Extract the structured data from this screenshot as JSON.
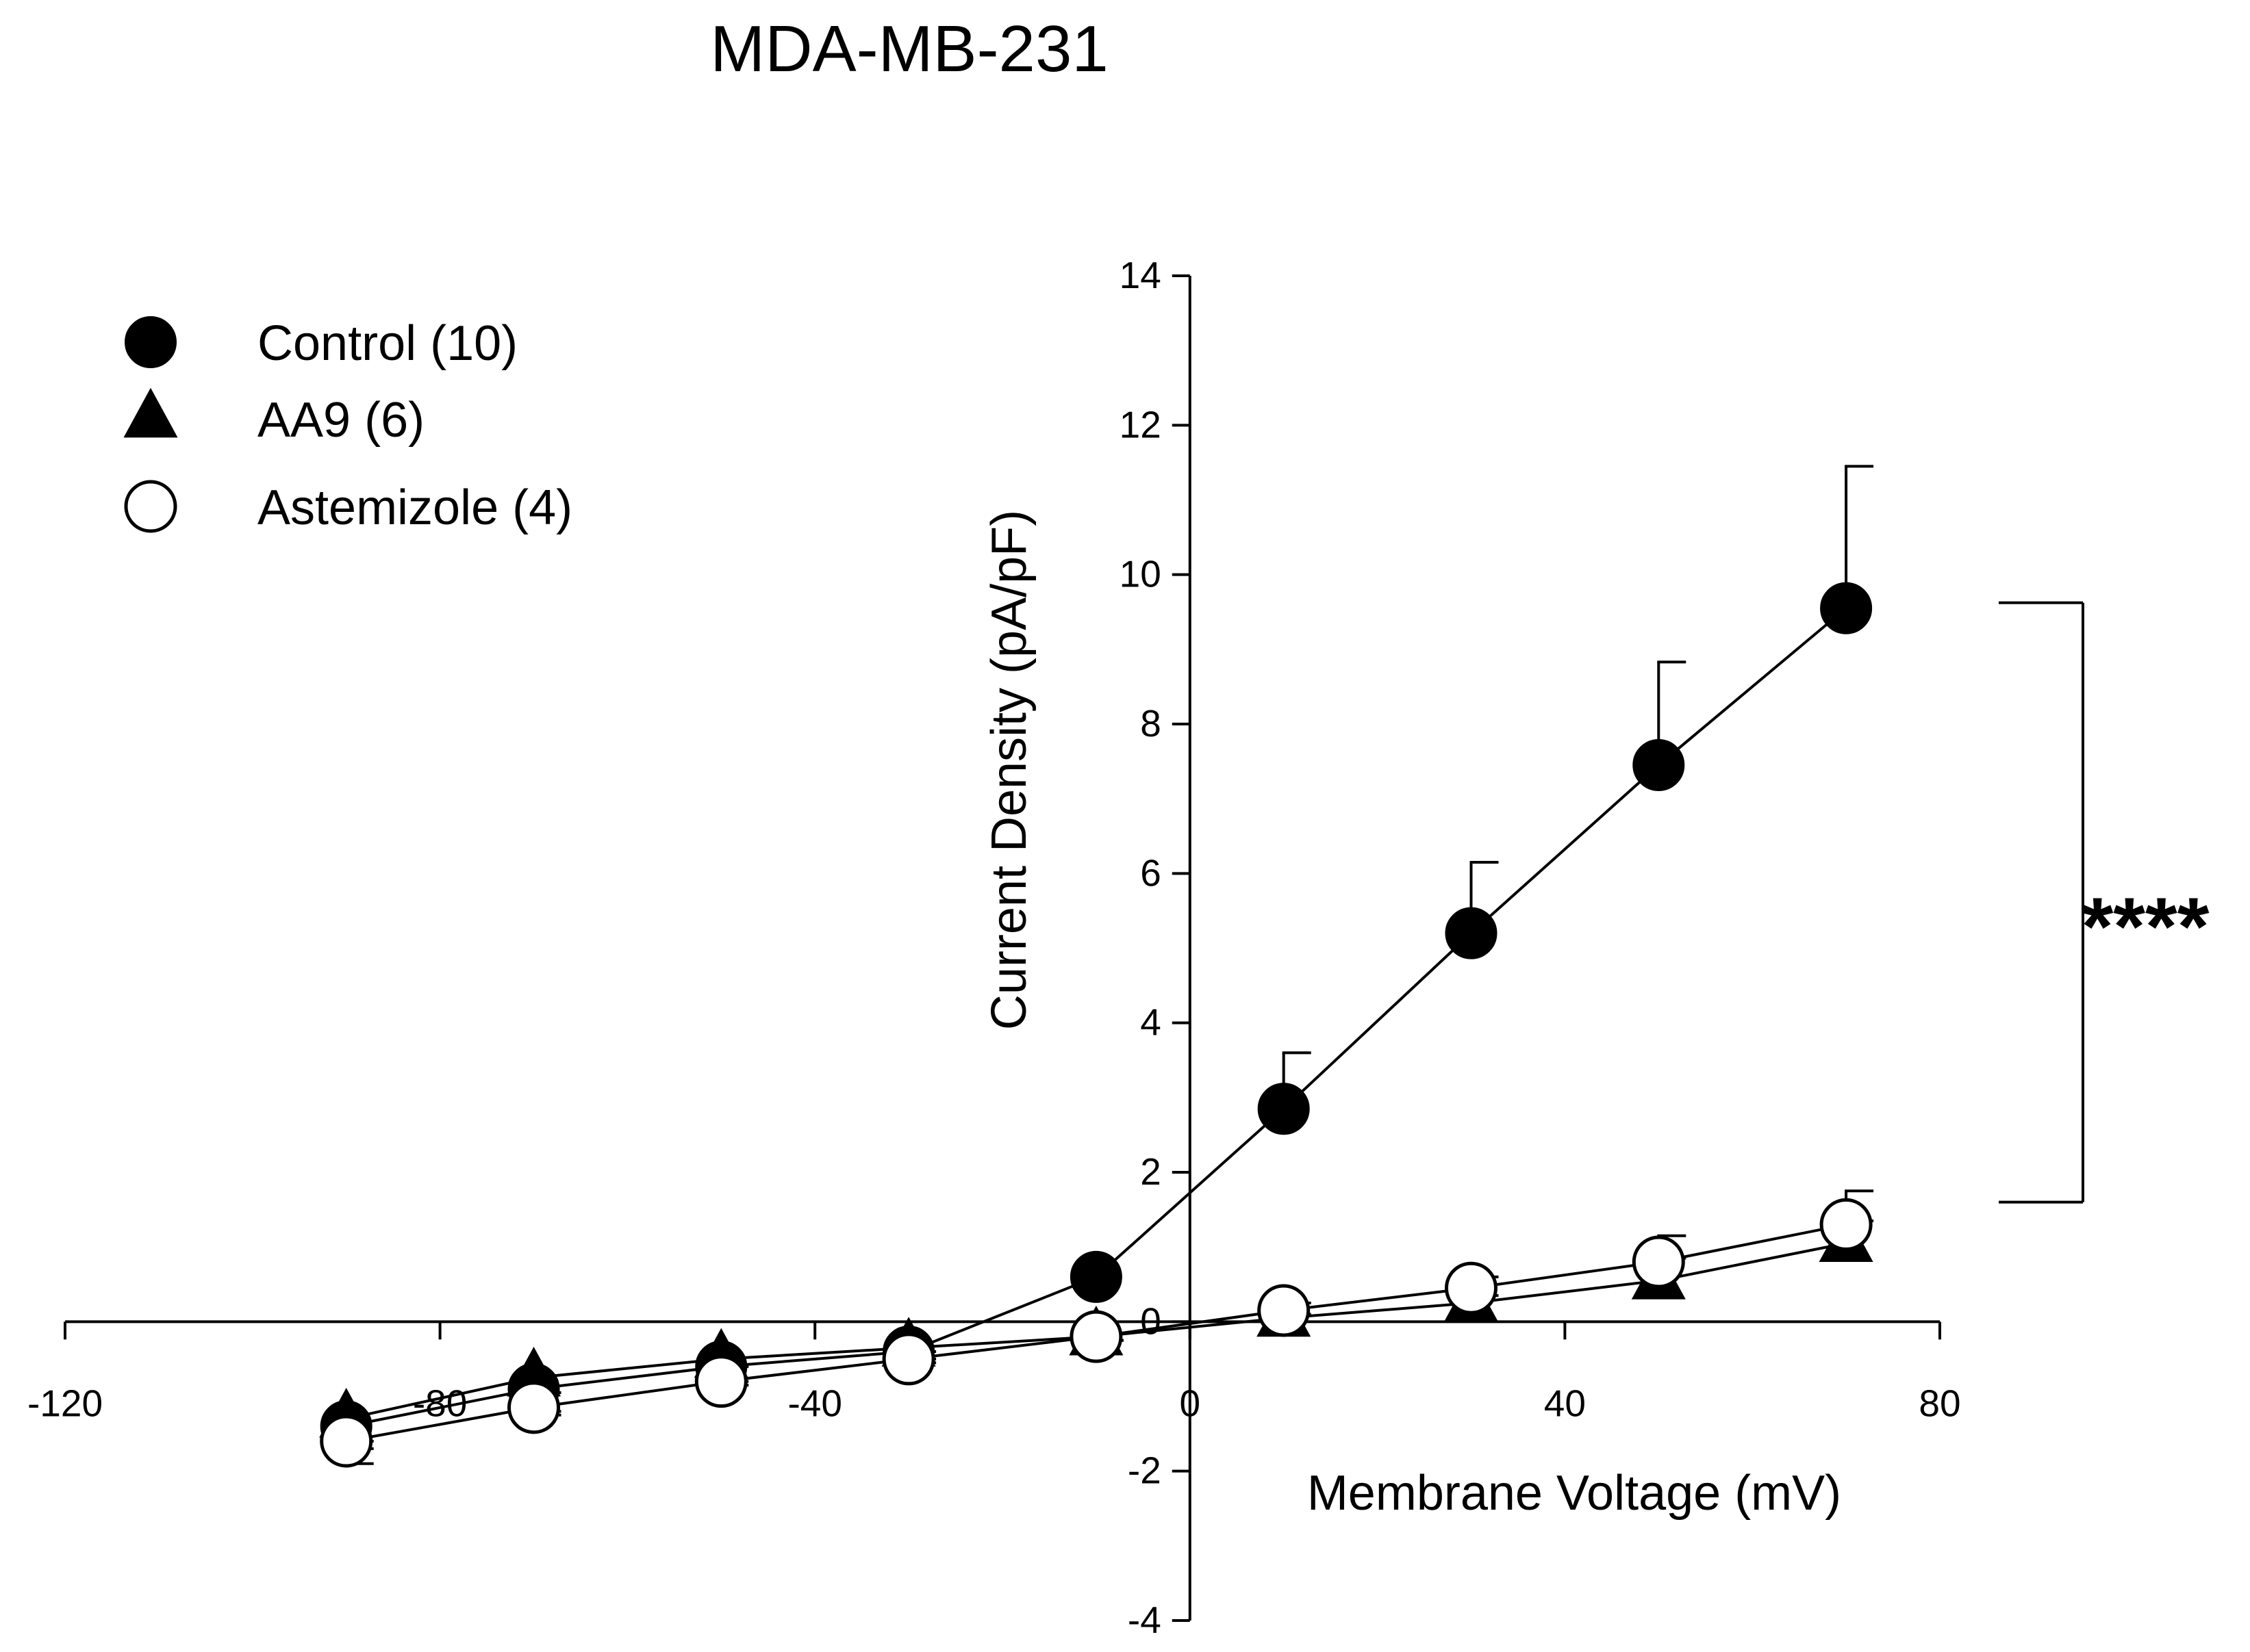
{
  "chart_data": {
    "type": "line",
    "title": "MDA-MB-231",
    "xlabel": "Membrane Voltage (mV)",
    "ylabel": "Current Density (pA/pF)",
    "xlim": [
      -120,
      80
    ],
    "ylim": [
      -4,
      14
    ],
    "x_ticks": [
      -120,
      -80,
      -40,
      0,
      40,
      80
    ],
    "x_tick_labels": [
      "-120",
      "-80",
      "-40",
      "0",
      "40",
      "80"
    ],
    "y_ticks": [
      -4,
      -2,
      0,
      2,
      4,
      6,
      8,
      10,
      12,
      14
    ],
    "y_tick_labels": [
      "-4",
      "-2",
      "0",
      "2",
      "4",
      "6",
      "8",
      "10",
      "12",
      "14"
    ],
    "legend_position": "top-left",
    "series": [
      {
        "name": "Control (10)",
        "marker": "filled-circle",
        "x": [
          -90,
          -70,
          -50,
          -30,
          -10,
          10,
          30,
          50,
          70
        ],
        "y": [
          -1.4,
          -0.9,
          -0.6,
          -0.4,
          0.6,
          2.85,
          5.2,
          7.45,
          9.55
        ],
        "err": [
          0.5,
          0.3,
          0.2,
          0.1,
          0.0,
          0.75,
          0.95,
          1.38,
          1.9
        ]
      },
      {
        "name": "AA9 (6)",
        "marker": "filled-triangle",
        "x": [
          -90,
          -70,
          -50,
          -30,
          -10,
          10,
          30,
          50,
          70
        ],
        "y": [
          -1.3,
          -0.75,
          -0.5,
          -0.35,
          -0.2,
          0.05,
          0.25,
          0.55,
          1.05
        ],
        "err": [
          0.3,
          0.2,
          0.1,
          0.05,
          0.05,
          0.05,
          0.1,
          0.3,
          0.3
        ]
      },
      {
        "name": "Astemizole (4)",
        "marker": "open-circle",
        "x": [
          -90,
          -70,
          -50,
          -30,
          -10,
          10,
          30,
          50,
          70
        ],
        "y": [
          -1.6,
          -1.15,
          -0.8,
          -0.5,
          -0.2,
          0.15,
          0.45,
          0.8,
          1.3
        ],
        "err": [
          0.1,
          0.1,
          0.05,
          0.05,
          0.05,
          0.1,
          0.15,
          0.35,
          0.45
        ]
      }
    ],
    "annotations": [
      {
        "text": "****",
        "note": "significance bracket spanning Control vs others at +70 mV"
      }
    ]
  }
}
